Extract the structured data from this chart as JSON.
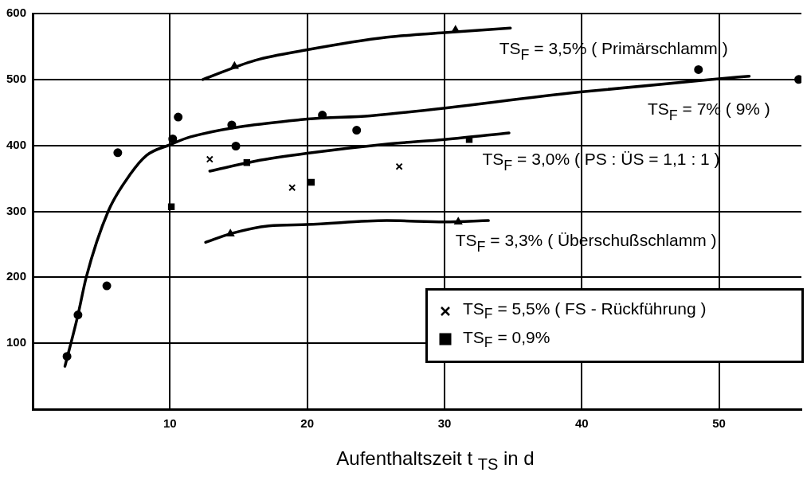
{
  "chart_data": {
    "type": "scatter",
    "xlabel": "Aufenthaltszeit t $_{TS}$ in d",
    "xlim": [
      0,
      56
    ],
    "ylim": [
      0,
      600
    ],
    "xticks": [
      10,
      20,
      30,
      40,
      50
    ],
    "yticks": [
      100,
      200,
      300,
      400,
      500,
      600
    ],
    "grid": true,
    "legend": "right",
    "series": [
      {
        "type": "line",
        "color": "#000000",
        "marker": "none",
        "x": [
          2.35,
          3.3,
          3.9,
          5.5,
          7.1,
          8.3,
          10.0,
          11.5,
          20,
          24.6,
          39.9,
          50,
          52.2
        ],
        "values": [
          65,
          143,
          200,
          300,
          356,
          385,
          401,
          413,
          440,
          445,
          481,
          501,
          505
        ]
      },
      {
        "type": "line",
        "color": "#000000",
        "marker": "none",
        "x": [
          12.4,
          16.2,
          20,
          25.8,
          30,
          34.8
        ],
        "values": [
          500,
          529,
          545,
          564,
          571,
          578
        ]
      },
      {
        "type": "line",
        "color": "#000000",
        "marker": "none",
        "x": [
          12.9,
          16.2,
          20,
          25.8,
          30,
          34.7
        ],
        "values": [
          361,
          376,
          388,
          402,
          409,
          419
        ]
      },
      {
        "type": "line",
        "color": "#000000",
        "marker": "none",
        "x": [
          12.6,
          14.4,
          17.2,
          20,
          25.8,
          30,
          33.2
        ],
        "values": [
          253,
          266,
          278,
          280,
          286,
          284,
          286
        ]
      },
      {
        "color": "#000000",
        "marker": "circle",
        "x": [
          2.5,
          3.3,
          6.2,
          10.2,
          14.8,
          21.1,
          48.5
        ],
        "values": [
          80,
          143,
          389,
          410,
          399,
          446,
          515
        ]
      },
      {
        "color": "#000000",
        "marker": "circle",
        "x": [
          5.4,
          10.6,
          14.5,
          23.6,
          55.8
        ],
        "values": [
          187,
          443,
          431,
          423,
          500
        ]
      },
      {
        "color": "#000000",
        "marker": "triangle",
        "x": [
          14.7,
          30.8
        ],
        "values": [
          520,
          575
        ]
      },
      {
        "color": "#000000",
        "marker": "square",
        "x": [
          15.6,
          31.8
        ],
        "values": [
          374,
          409
        ]
      },
      {
        "color": "#000000",
        "marker": "triangle",
        "x": [
          14.4,
          31.0
        ],
        "values": [
          266,
          284
        ]
      },
      {
        "name": "TS$_{F}$ = 5,5% ( FS - Rückführung )",
        "color": "#000000",
        "marker": "cross",
        "x": [
          12.9,
          18.9,
          26.7
        ],
        "values": [
          379,
          336,
          368
        ]
      },
      {
        "name": "TS$_{F}$ = 0,9%",
        "color": "#000000",
        "marker": "square",
        "x": [
          10.1,
          20.3
        ],
        "values": [
          307,
          344
        ]
      }
    ],
    "annotations": [
      "TS$_{F}$ = 3,5% ( Primärschlamm )",
      "TS$_{F}$ = 7% ( 9% )",
      "TS$_{F}$ = 3,0% ( PS : ÜS = 1,1 : 1 )",
      "TS$_{F}$ = 3,3% ( Überschußschlamm )"
    ]
  }
}
